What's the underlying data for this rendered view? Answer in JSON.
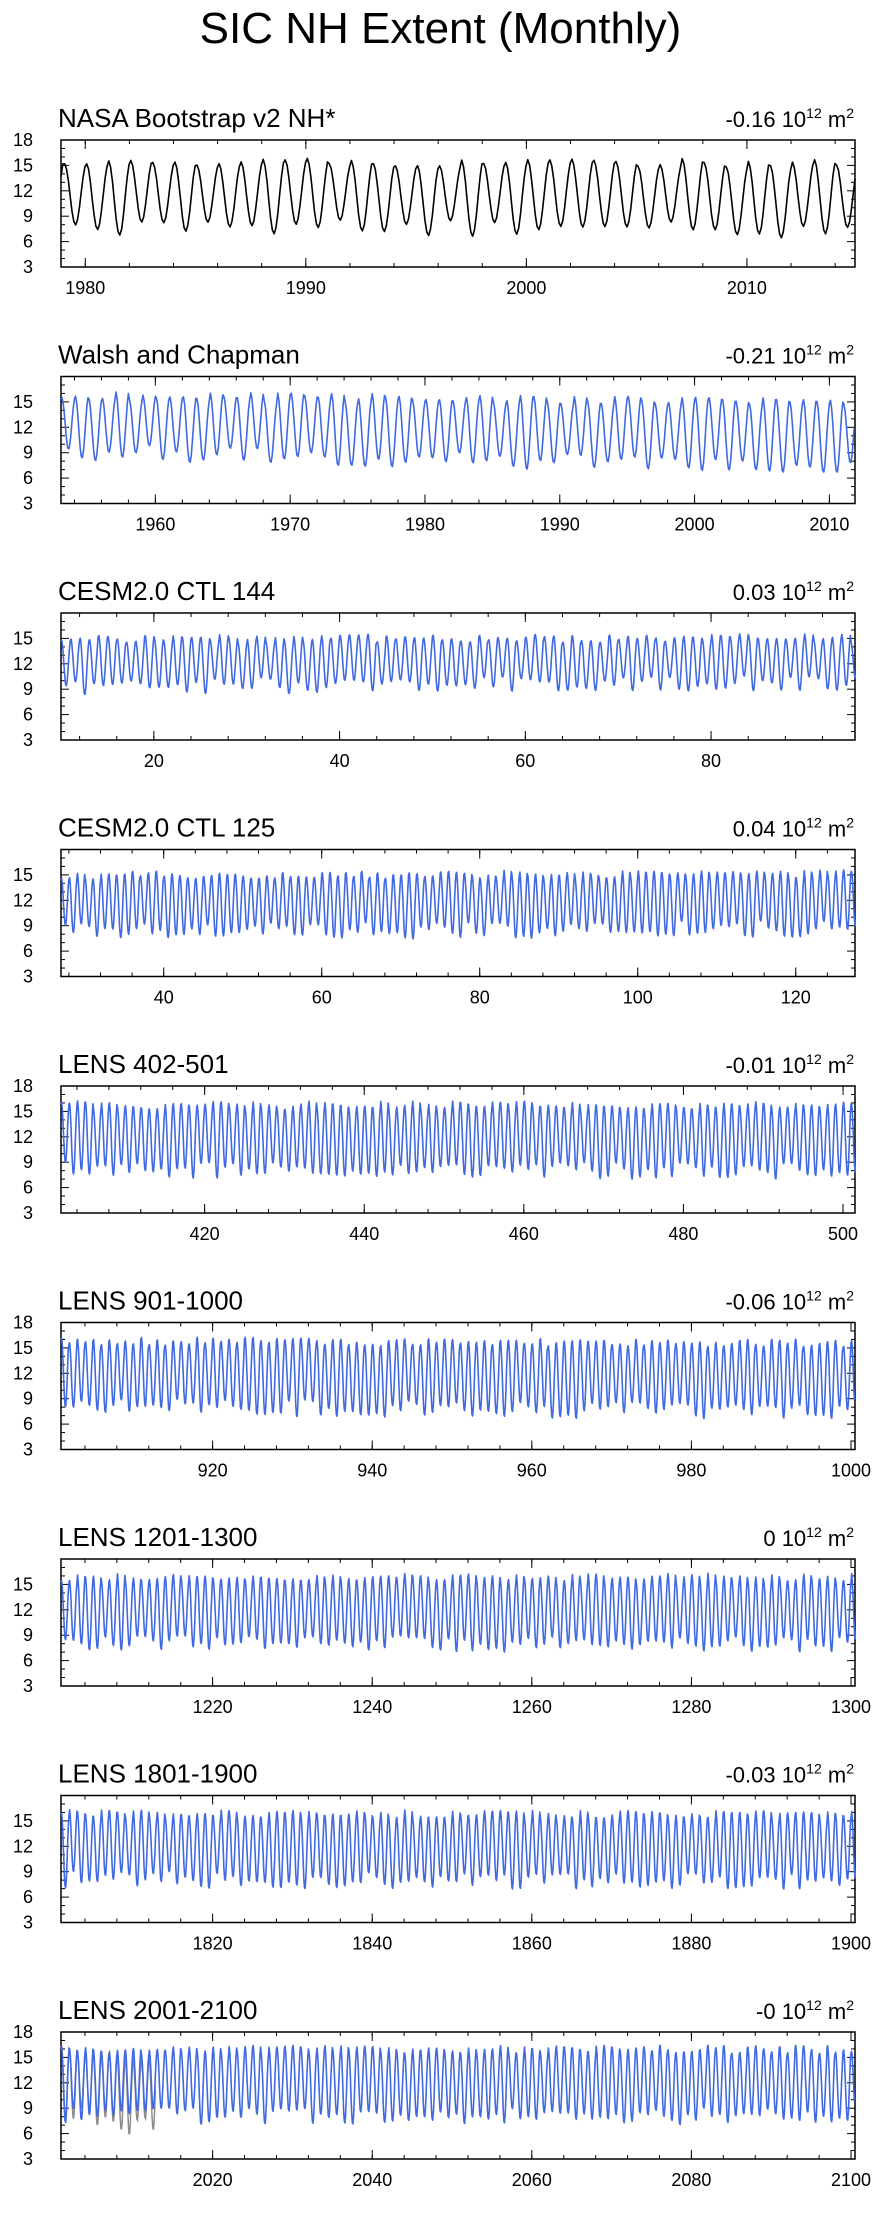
{
  "title": "SIC NH Extent (Monthly)",
  "unit": "10",
  "unit_exp": "12",
  "unit_suffix": "m",
  "unit_sup2": "2",
  "y_ticks": [
    3,
    6,
    9,
    12,
    15,
    18
  ],
  "colors": {
    "observed": "#000000",
    "model": "#4169e1",
    "reference": "#8c8c8c",
    "axis": "#000000"
  },
  "chart_data": [
    {
      "type": "line",
      "title": "NASA Bootstrap v2 NH*",
      "trend_value": "-0.16",
      "x_range": [
        1978.9,
        2014.9
      ],
      "ylim": [
        3,
        18
      ],
      "x_ticks": [
        1980,
        1990,
        2000,
        2010
      ],
      "y_tick_labels": [
        "3",
        "6",
        "9",
        "12",
        "15",
        "18"
      ],
      "series_color": "observed",
      "approx_envelope": {
        "mean_max": 15.5,
        "mean_min": 7.8,
        "trend_per_100": -1.6
      }
    },
    {
      "type": "line",
      "title": "Walsh and Chapman",
      "trend_value": "-0.21",
      "x_range": [
        1953,
        2011.9
      ],
      "ylim": [
        3,
        18
      ],
      "x_ticks": [
        1960,
        1970,
        1980,
        1990,
        2000,
        2010
      ],
      "y_tick_labels": [
        "3",
        "6",
        "9",
        "12",
        "15"
      ],
      "series_color": "model",
      "approx_envelope": {
        "mean_max": 15.8,
        "mean_min": 9.0,
        "trend_per_100": -3.0
      }
    },
    {
      "type": "line",
      "title": "CESM2.0 CTL 144",
      "trend_value": "0.03",
      "x_range": [
        10,
        95.5
      ],
      "ylim": [
        3,
        18
      ],
      "x_ticks": [
        20,
        40,
        60,
        80
      ],
      "y_tick_labels": [
        "3",
        "6",
        "9",
        "12",
        "15"
      ],
      "series_color": "model",
      "approx_envelope": {
        "mean_max": 15.0,
        "mean_min": 9.3,
        "trend_per_100": 0.3
      }
    },
    {
      "type": "line",
      "title": "CESM2.0 CTL 125",
      "trend_value": "0.04",
      "x_range": [
        27,
        127.5
      ],
      "ylim": [
        3,
        18
      ],
      "x_ticks": [
        40,
        60,
        80,
        100,
        120
      ],
      "y_tick_labels": [
        "3",
        "6",
        "9",
        "12",
        "15"
      ],
      "series_color": "model",
      "approx_envelope": {
        "mean_max": 15.0,
        "mean_min": 8.2,
        "trend_per_100": 0.4
      }
    },
    {
      "type": "line",
      "title": "LENS 402-501",
      "trend_value": "-0.01",
      "x_range": [
        402,
        501.5
      ],
      "ylim": [
        3,
        18
      ],
      "x_ticks": [
        420,
        440,
        460,
        480,
        500
      ],
      "y_tick_labels": [
        "3",
        "6",
        "9",
        "12",
        "15",
        "18"
      ],
      "series_color": "model",
      "approx_envelope": {
        "mean_max": 15.8,
        "mean_min": 8.0,
        "trend_per_100": -0.1
      }
    },
    {
      "type": "line",
      "title": "LENS 901-1000",
      "trend_value": "-0.06",
      "x_range": [
        901,
        1000.5
      ],
      "ylim": [
        3,
        18
      ],
      "x_ticks": [
        920,
        940,
        960,
        980,
        1000
      ],
      "y_tick_labels": [
        "3",
        "6",
        "9",
        "12",
        "15",
        "18"
      ],
      "series_color": "model",
      "approx_envelope": {
        "mean_max": 15.9,
        "mean_min": 8.0,
        "trend_per_100": -0.6
      }
    },
    {
      "type": "line",
      "title": "LENS 1201-1300",
      "trend_value": "0",
      "x_range": [
        1201,
        1300.5
      ],
      "ylim": [
        3,
        18
      ],
      "x_ticks": [
        1220,
        1240,
        1260,
        1280,
        1300
      ],
      "y_tick_labels": [
        "3",
        "6",
        "9",
        "12",
        "15"
      ],
      "series_color": "model",
      "approx_envelope": {
        "mean_max": 15.9,
        "mean_min": 7.9,
        "trend_per_100": 0.0
      }
    },
    {
      "type": "line",
      "title": "LENS 1801-1900",
      "trend_value": "-0.03",
      "x_range": [
        1801,
        1900.5
      ],
      "ylim": [
        3,
        18
      ],
      "x_ticks": [
        1820,
        1840,
        1860,
        1880,
        1900
      ],
      "y_tick_labels": [
        "3",
        "6",
        "9",
        "12",
        "15"
      ],
      "series_color": "model",
      "approx_envelope": {
        "mean_max": 15.9,
        "mean_min": 8.0,
        "trend_per_100": -0.3
      }
    },
    {
      "type": "line",
      "title": "LENS 2001-2100",
      "trend_value": "-0",
      "x_range": [
        2001,
        2100.5
      ],
      "ylim": [
        3,
        18
      ],
      "x_ticks": [
        2020,
        2040,
        2060,
        2080,
        2100
      ],
      "y_tick_labels": [
        "3",
        "6",
        "9",
        "12",
        "15",
        "18"
      ],
      "series_color": "model",
      "approx_envelope": {
        "mean_max": 16.0,
        "mean_min": 8.0,
        "trend_per_100": 0.0
      },
      "reference_overlay": {
        "x_range": [
          2001,
          2012.9
        ],
        "color": "reference"
      }
    }
  ]
}
